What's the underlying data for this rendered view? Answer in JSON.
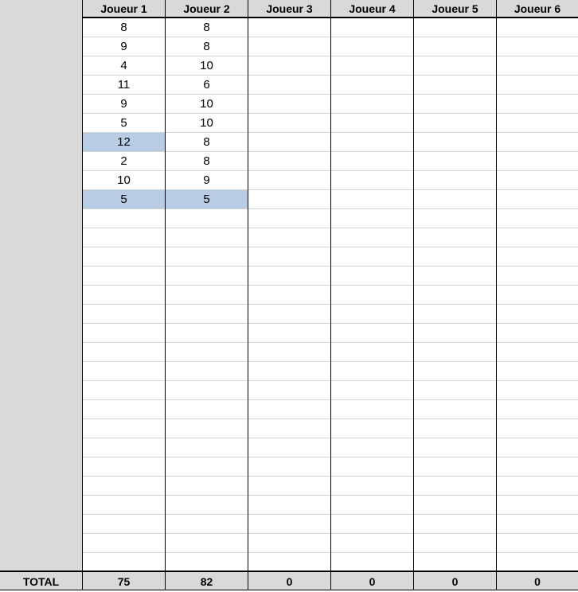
{
  "columns": [
    "Joueur 1",
    "Joueur 2",
    "Joueur 3",
    "Joueur 4",
    "Joueur 5",
    "Joueur 6"
  ],
  "scores": [
    [
      "8",
      "9",
      "4",
      "11",
      "9",
      "5",
      "12",
      "2",
      "10",
      "5"
    ],
    [
      "8",
      "8",
      "10",
      "6",
      "10",
      "10",
      "8",
      "8",
      "9",
      "5"
    ],
    [],
    [],
    [],
    []
  ],
  "selected_cells": [
    [
      0,
      6
    ],
    [
      0,
      9
    ],
    [
      1,
      9
    ]
  ],
  "selection_color": "#b8cce4",
  "total": {
    "label": "TOTAL",
    "values": [
      "75",
      "82",
      "0",
      "0",
      "0",
      "0"
    ]
  }
}
